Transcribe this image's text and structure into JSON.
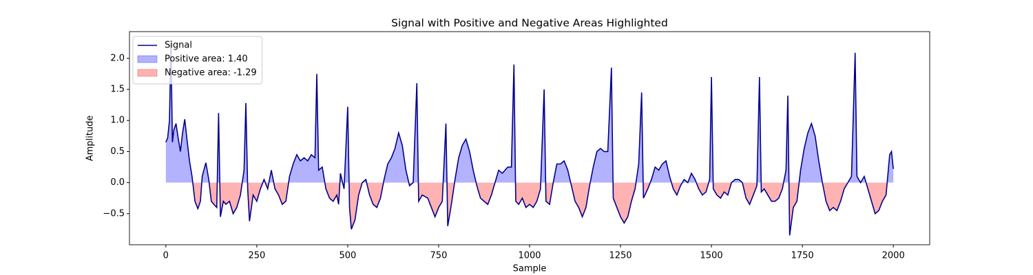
{
  "chart_data": {
    "type": "line",
    "title": "Signal with Positive and Negative Areas Highlighted",
    "xlabel": "Sample",
    "ylabel": "Amplitude",
    "xlim": [
      -100,
      2100
    ],
    "ylim": [
      -1.0,
      2.43
    ],
    "xticks": [
      0,
      250,
      500,
      750,
      1000,
      1250,
      1500,
      1750,
      2000
    ],
    "yticks": [
      {
        "value": -0.5,
        "label": "−0.5"
      },
      {
        "value": 0,
        "label": "0.0"
      },
      0.5,
      {
        "value": 1,
        "label": "1.0"
      },
      1.5,
      {
        "value": 2,
        "label": "2.0"
      }
    ],
    "grid": false,
    "legend": "upper left",
    "x": [
      0,
      5,
      10,
      14,
      18,
      22,
      28,
      33,
      40,
      46,
      52,
      58,
      65,
      72,
      80,
      88,
      95,
      100,
      110,
      118,
      125,
      132,
      140,
      145,
      150,
      158,
      165,
      175,
      185,
      195,
      205,
      215,
      220,
      225,
      230,
      240,
      250,
      260,
      270,
      280,
      290,
      300,
      310,
      320,
      330,
      340,
      350,
      360,
      370,
      380,
      390,
      400,
      410,
      415,
      420,
      430,
      440,
      450,
      460,
      470,
      475,
      480,
      490,
      500,
      505,
      510,
      520,
      530,
      540,
      550,
      560,
      570,
      580,
      590,
      600,
      610,
      620,
      630,
      640,
      650,
      660,
      670,
      680,
      690,
      695,
      705,
      720,
      730,
      740,
      750,
      760,
      770,
      775,
      785,
      795,
      805,
      815,
      825,
      835,
      845,
      855,
      865,
      875,
      885,
      895,
      905,
      915,
      925,
      940,
      950,
      957,
      962,
      970,
      980,
      990,
      1000,
      1010,
      1020,
      1030,
      1040,
      1045,
      1055,
      1065,
      1075,
      1085,
      1095,
      1105,
      1115,
      1125,
      1135,
      1145,
      1155,
      1165,
      1175,
      1185,
      1195,
      1205,
      1215,
      1225,
      1230,
      1240,
      1250,
      1260,
      1270,
      1280,
      1290,
      1300,
      1308,
      1313,
      1325,
      1335,
      1345,
      1355,
      1365,
      1375,
      1385,
      1395,
      1405,
      1415,
      1425,
      1435,
      1445,
      1455,
      1465,
      1475,
      1485,
      1495,
      1500,
      1505,
      1515,
      1525,
      1535,
      1545,
      1555,
      1565,
      1575,
      1585,
      1595,
      1605,
      1615,
      1625,
      1632,
      1637,
      1645,
      1655,
      1665,
      1675,
      1685,
      1695,
      1705,
      1710,
      1715,
      1725,
      1735,
      1745,
      1755,
      1765,
      1775,
      1785,
      1795,
      1805,
      1815,
      1825,
      1835,
      1845,
      1855,
      1865,
      1875,
      1885,
      1895,
      1900,
      1910,
      1920,
      1930,
      1940,
      1950,
      1960,
      1970,
      1980,
      1990,
      1995,
      2000
    ],
    "series": [
      {
        "name": "Signal",
        "color": "#00008b",
        "values": [
          0.65,
          0.72,
          1.0,
          2.3,
          0.65,
          0.85,
          0.95,
          0.75,
          0.5,
          0.8,
          1.02,
          0.7,
          0.35,
          0.1,
          -0.3,
          -0.42,
          -0.3,
          0.1,
          0.32,
          0.05,
          -0.3,
          -0.35,
          -0.4,
          1.12,
          -0.55,
          -0.3,
          -0.35,
          -0.3,
          -0.5,
          -0.4,
          -0.2,
          0.2,
          1.28,
          -0.1,
          -0.62,
          -0.2,
          -0.3,
          -0.1,
          0.05,
          -0.1,
          0.2,
          -0.1,
          -0.2,
          -0.35,
          -0.3,
          0.1,
          0.3,
          0.45,
          0.35,
          0.4,
          0.35,
          0.45,
          0.4,
          1.75,
          0.2,
          0.25,
          -0.1,
          -0.25,
          -0.3,
          -0.2,
          -0.35,
          0.15,
          -0.1,
          1.22,
          -0.4,
          -0.75,
          -0.6,
          -0.2,
          0.0,
          0.05,
          -0.2,
          -0.35,
          -0.4,
          -0.25,
          0.05,
          0.3,
          0.4,
          0.55,
          0.8,
          0.6,
          0.2,
          -0.05,
          0.0,
          1.6,
          -0.3,
          -0.2,
          -0.25,
          -0.4,
          -0.55,
          -0.4,
          -0.3,
          0.95,
          -0.7,
          -0.35,
          0.05,
          0.4,
          0.6,
          0.7,
          0.5,
          0.2,
          -0.05,
          -0.25,
          -0.3,
          -0.35,
          -0.2,
          0.0,
          0.2,
          0.15,
          0.25,
          0.25,
          1.9,
          -0.3,
          -0.35,
          -0.25,
          -0.4,
          -0.35,
          -0.4,
          -0.3,
          -0.1,
          1.5,
          -0.3,
          -0.35,
          0.0,
          0.3,
          0.3,
          0.35,
          0.2,
          -0.05,
          -0.3,
          -0.4,
          -0.55,
          -0.4,
          -0.05,
          0.25,
          0.5,
          0.55,
          0.5,
          0.5,
          1.85,
          -0.25,
          -0.4,
          -0.55,
          -0.65,
          -0.55,
          -0.3,
          -0.1,
          0.3,
          1.45,
          -0.25,
          -0.1,
          0.05,
          0.25,
          0.2,
          0.3,
          0.35,
          0.1,
          -0.1,
          -0.2,
          -0.05,
          0.05,
          0.0,
          0.15,
          0.05,
          -0.1,
          -0.2,
          -0.15,
          0.05,
          1.7,
          -0.1,
          -0.2,
          -0.25,
          -0.15,
          -0.2,
          0.0,
          0.05,
          0.05,
          0.0,
          -0.25,
          -0.35,
          -0.2,
          -0.05,
          1.7,
          -0.15,
          -0.1,
          -0.2,
          -0.3,
          -0.3,
          -0.25,
          -0.1,
          0.2,
          1.4,
          -0.85,
          -0.4,
          -0.3,
          0.2,
          0.55,
          0.8,
          0.95,
          0.75,
          0.35,
          0.0,
          -0.3,
          -0.45,
          -0.4,
          -0.45,
          -0.3,
          -0.1,
          0.0,
          0.1,
          2.09,
          0.1,
          0.0,
          0.1,
          -0.1,
          -0.3,
          -0.5,
          -0.45,
          -0.3,
          -0.2,
          0.45,
          0.5,
          0.22
        ]
      }
    ],
    "areas": [
      {
        "name": "Positive area: 1.40",
        "color": "#0000ff",
        "side": "positive"
      },
      {
        "name": "Negative area: -1.29",
        "color": "#ff0000",
        "side": "negative"
      }
    ]
  }
}
